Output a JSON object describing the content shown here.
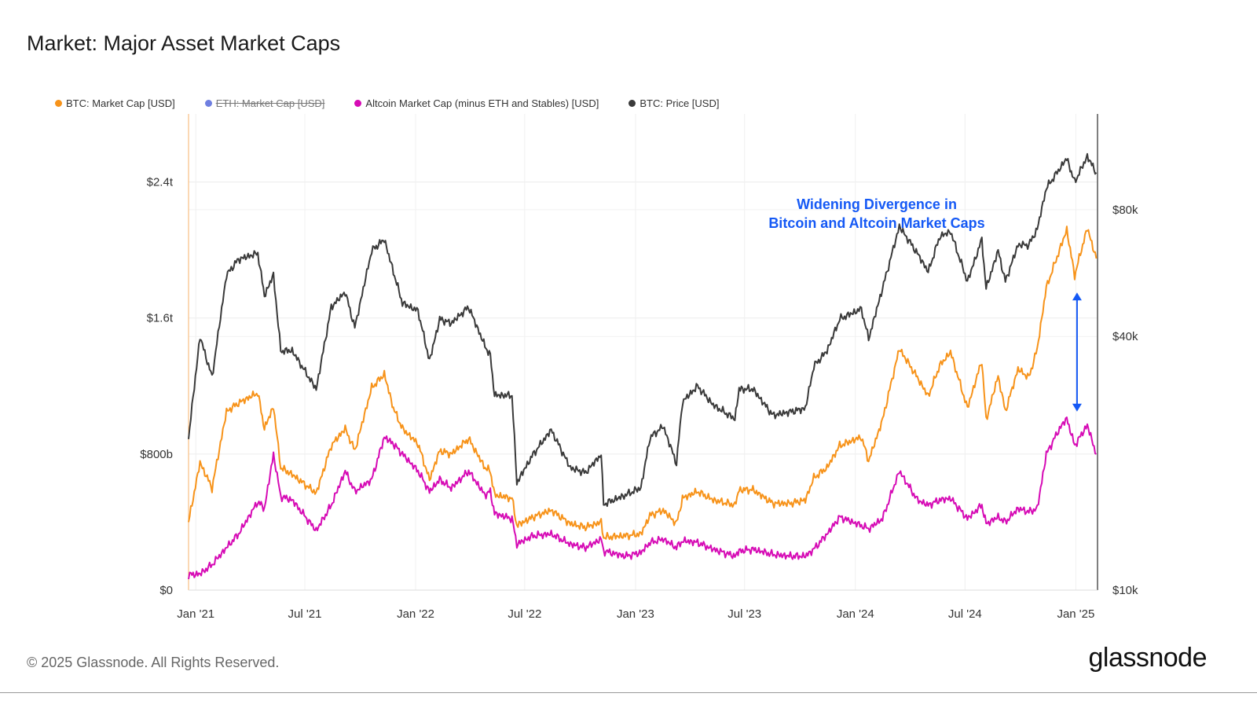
{
  "header": {
    "title": "Market: Major Asset Market Caps"
  },
  "footer": {
    "copyright": "© 2025 Glassnode. All Rights Reserved.",
    "brand": "glassnode"
  },
  "legend": [
    {
      "label": "BTC: Market Cap [USD]",
      "color": "#f7931a",
      "active": true
    },
    {
      "label": "ETH: Market Cap [USD]",
      "color": "#6f7fe0",
      "active": false
    },
    {
      "label": "Altcoin Market Cap (minus ETH and Stables) [USD]",
      "color": "#d60bb5",
      "active": true
    },
    {
      "label": "BTC: Price [USD]",
      "color": "#3a3a3a",
      "active": true
    }
  ],
  "chart_data": {
    "type": "line",
    "title": "Market: Major Asset Market Caps",
    "x_tick_labels": [
      "Jan '21",
      "Jul '21",
      "Jan '22",
      "Jul '22",
      "Jan '23",
      "Jul '23",
      "Jan '24",
      "Jul '24",
      "Jan '25"
    ],
    "x_tick_dates": [
      "2021-01-01",
      "2021-07-01",
      "2022-01-01",
      "2022-07-01",
      "2023-01-01",
      "2023-07-01",
      "2024-01-01",
      "2024-07-01",
      "2025-01-01"
    ],
    "x_range": [
      "2020-12-20",
      "2025-02-06"
    ],
    "y_left": {
      "tick_labels": [
        "$0",
        "$800b",
        "$1.6t",
        "$2.4t"
      ],
      "tick_values": [
        0,
        800,
        1600,
        2400
      ],
      "unit": "billion USD",
      "range": [
        0,
        2800
      ]
    },
    "y_right": {
      "tick_labels": [
        "$10k",
        "$40k",
        "$80k"
      ],
      "tick_values": [
        10000,
        40000,
        80000
      ],
      "scale": "log",
      "range": [
        10000,
        135000
      ]
    },
    "annotation": {
      "lines": [
        "Widening Divergence in",
        "Bitcoin and Altcoin Market Caps"
      ],
      "color": "#1559f5",
      "from_date": "2025-01-03",
      "value_top": 1750,
      "value_bottom": 1050
    },
    "series": [
      {
        "name": "BTC: Market Cap [USD]",
        "axis": "left",
        "color": "#f7931a",
        "points": [
          [
            "2020-12-20",
            400
          ],
          [
            "2021-01-08",
            750
          ],
          [
            "2021-01-28",
            600
          ],
          [
            "2021-02-21",
            1050
          ],
          [
            "2021-03-13",
            1100
          ],
          [
            "2021-04-14",
            1160
          ],
          [
            "2021-04-25",
            950
          ],
          [
            "2021-05-10",
            1080
          ],
          [
            "2021-05-22",
            720
          ],
          [
            "2021-06-10",
            680
          ],
          [
            "2021-07-20",
            570
          ],
          [
            "2021-08-14",
            850
          ],
          [
            "2021-09-06",
            950
          ],
          [
            "2021-09-22",
            820
          ],
          [
            "2021-10-20",
            1190
          ],
          [
            "2021-11-10",
            1270
          ],
          [
            "2021-11-25",
            1070
          ],
          [
            "2021-12-10",
            950
          ],
          [
            "2022-01-05",
            860
          ],
          [
            "2022-01-24",
            650
          ],
          [
            "2022-02-10",
            820
          ],
          [
            "2022-03-01",
            800
          ],
          [
            "2022-03-30",
            890
          ],
          [
            "2022-04-26",
            720
          ],
          [
            "2022-05-05",
            700
          ],
          [
            "2022-05-12",
            560
          ],
          [
            "2022-06-10",
            540
          ],
          [
            "2022-06-18",
            380
          ],
          [
            "2022-07-15",
            430
          ],
          [
            "2022-08-14",
            470
          ],
          [
            "2022-09-15",
            390
          ],
          [
            "2022-10-10",
            370
          ],
          [
            "2022-11-05",
            400
          ],
          [
            "2022-11-09",
            310
          ],
          [
            "2022-12-15",
            320
          ],
          [
            "2023-01-10",
            330
          ],
          [
            "2023-01-25",
            440
          ],
          [
            "2023-02-16",
            470
          ],
          [
            "2023-03-10",
            390
          ],
          [
            "2023-03-20",
            540
          ],
          [
            "2023-04-14",
            580
          ],
          [
            "2023-05-10",
            530
          ],
          [
            "2023-06-15",
            500
          ],
          [
            "2023-06-22",
            590
          ],
          [
            "2023-07-15",
            590
          ],
          [
            "2023-08-17",
            510
          ],
          [
            "2023-09-15",
            510
          ],
          [
            "2023-10-10",
            530
          ],
          [
            "2023-10-24",
            660
          ],
          [
            "2023-11-15",
            720
          ],
          [
            "2023-12-06",
            850
          ],
          [
            "2024-01-11",
            900
          ],
          [
            "2024-01-23",
            760
          ],
          [
            "2024-02-15",
            1000
          ],
          [
            "2024-03-14",
            1420
          ],
          [
            "2024-04-13",
            1250
          ],
          [
            "2024-05-01",
            1140
          ],
          [
            "2024-05-20",
            1320
          ],
          [
            "2024-06-07",
            1400
          ],
          [
            "2024-07-05",
            1070
          ],
          [
            "2024-07-29",
            1350
          ],
          [
            "2024-08-05",
            1000
          ],
          [
            "2024-08-25",
            1260
          ],
          [
            "2024-09-06",
            1050
          ],
          [
            "2024-09-27",
            1300
          ],
          [
            "2024-10-15",
            1250
          ],
          [
            "2024-10-29",
            1420
          ],
          [
            "2024-11-13",
            1780
          ],
          [
            "2024-12-05",
            2000
          ],
          [
            "2024-12-17",
            2120
          ],
          [
            "2024-12-30",
            1850
          ],
          [
            "2025-01-20",
            2130
          ],
          [
            "2025-02-04",
            1950
          ]
        ]
      },
      {
        "name": "Altcoin Market Cap (minus ETH and Stables) [USD]",
        "axis": "left",
        "color": "#d60bb5",
        "points": [
          [
            "2020-12-20",
            90
          ],
          [
            "2021-01-08",
            95
          ],
          [
            "2021-01-28",
            150
          ],
          [
            "2021-02-21",
            250
          ],
          [
            "2021-03-13",
            330
          ],
          [
            "2021-04-14",
            520
          ],
          [
            "2021-04-25",
            480
          ],
          [
            "2021-05-10",
            800
          ],
          [
            "2021-05-22",
            550
          ],
          [
            "2021-06-10",
            530
          ],
          [
            "2021-07-20",
            350
          ],
          [
            "2021-08-14",
            500
          ],
          [
            "2021-09-06",
            700
          ],
          [
            "2021-09-22",
            580
          ],
          [
            "2021-10-20",
            650
          ],
          [
            "2021-11-10",
            900
          ],
          [
            "2021-11-25",
            860
          ],
          [
            "2021-12-10",
            800
          ],
          [
            "2022-01-05",
            700
          ],
          [
            "2022-01-24",
            580
          ],
          [
            "2022-02-10",
            650
          ],
          [
            "2022-03-01",
            600
          ],
          [
            "2022-03-30",
            700
          ],
          [
            "2022-04-26",
            560
          ],
          [
            "2022-05-05",
            580
          ],
          [
            "2022-05-12",
            450
          ],
          [
            "2022-06-10",
            420
          ],
          [
            "2022-06-18",
            270
          ],
          [
            "2022-07-15",
            320
          ],
          [
            "2022-08-14",
            330
          ],
          [
            "2022-09-15",
            270
          ],
          [
            "2022-10-10",
            250
          ],
          [
            "2022-11-05",
            300
          ],
          [
            "2022-11-09",
            230
          ],
          [
            "2022-12-15",
            200
          ],
          [
            "2023-01-10",
            220
          ],
          [
            "2023-01-25",
            280
          ],
          [
            "2023-02-16",
            300
          ],
          [
            "2023-03-10",
            250
          ],
          [
            "2023-03-20",
            290
          ],
          [
            "2023-04-14",
            280
          ],
          [
            "2023-05-10",
            240
          ],
          [
            "2023-06-15",
            200
          ],
          [
            "2023-06-22",
            230
          ],
          [
            "2023-07-15",
            240
          ],
          [
            "2023-08-17",
            210
          ],
          [
            "2023-09-15",
            200
          ],
          [
            "2023-10-10",
            200
          ],
          [
            "2023-10-24",
            240
          ],
          [
            "2023-11-15",
            330
          ],
          [
            "2023-12-06",
            430
          ],
          [
            "2024-01-11",
            380
          ],
          [
            "2024-01-23",
            360
          ],
          [
            "2024-02-15",
            420
          ],
          [
            "2024-03-14",
            700
          ],
          [
            "2024-04-13",
            530
          ],
          [
            "2024-05-01",
            500
          ],
          [
            "2024-05-20",
            530
          ],
          [
            "2024-06-07",
            540
          ],
          [
            "2024-07-05",
            420
          ],
          [
            "2024-07-29",
            500
          ],
          [
            "2024-08-05",
            390
          ],
          [
            "2024-08-25",
            430
          ],
          [
            "2024-09-06",
            400
          ],
          [
            "2024-09-27",
            480
          ],
          [
            "2024-10-15",
            460
          ],
          [
            "2024-10-29",
            480
          ],
          [
            "2024-11-13",
            800
          ],
          [
            "2024-12-05",
            950
          ],
          [
            "2024-12-17",
            1010
          ],
          [
            "2024-12-30",
            850
          ],
          [
            "2025-01-20",
            970
          ],
          [
            "2025-02-04",
            800
          ]
        ]
      },
      {
        "name": "BTC: Price [USD]",
        "axis": "right",
        "color": "#3a3a3a",
        "points": [
          [
            "2020-12-20",
            23000
          ],
          [
            "2021-01-08",
            40000
          ],
          [
            "2021-01-28",
            32000
          ],
          [
            "2021-02-21",
            56000
          ],
          [
            "2021-03-13",
            61000
          ],
          [
            "2021-04-14",
            63000
          ],
          [
            "2021-04-25",
            50000
          ],
          [
            "2021-05-10",
            56000
          ],
          [
            "2021-05-22",
            37000
          ],
          [
            "2021-06-10",
            37000
          ],
          [
            "2021-07-20",
            30000
          ],
          [
            "2021-08-14",
            47000
          ],
          [
            "2021-09-06",
            51000
          ],
          [
            "2021-09-22",
            42000
          ],
          [
            "2021-10-20",
            64000
          ],
          [
            "2021-11-10",
            68000
          ],
          [
            "2021-11-25",
            57000
          ],
          [
            "2021-12-10",
            48000
          ],
          [
            "2022-01-05",
            46000
          ],
          [
            "2022-01-24",
            35000
          ],
          [
            "2022-02-10",
            44000
          ],
          [
            "2022-03-01",
            43000
          ],
          [
            "2022-03-30",
            47000
          ],
          [
            "2022-04-26",
            38000
          ],
          [
            "2022-05-05",
            36000
          ],
          [
            "2022-05-12",
            29000
          ],
          [
            "2022-06-10",
            29000
          ],
          [
            "2022-06-18",
            18000
          ],
          [
            "2022-07-15",
            21000
          ],
          [
            "2022-08-14",
            24000
          ],
          [
            "2022-09-15",
            19500
          ],
          [
            "2022-10-10",
            19000
          ],
          [
            "2022-11-05",
            21000
          ],
          [
            "2022-11-09",
            16000
          ],
          [
            "2022-12-15",
            16800
          ],
          [
            "2023-01-10",
            17500
          ],
          [
            "2023-01-25",
            23000
          ],
          [
            "2023-02-16",
            24500
          ],
          [
            "2023-03-10",
            20000
          ],
          [
            "2023-03-20",
            28000
          ],
          [
            "2023-04-14",
            30500
          ],
          [
            "2023-05-10",
            27500
          ],
          [
            "2023-06-15",
            25500
          ],
          [
            "2023-06-22",
            30000
          ],
          [
            "2023-07-15",
            30000
          ],
          [
            "2023-08-17",
            26000
          ],
          [
            "2023-09-15",
            26500
          ],
          [
            "2023-10-10",
            27000
          ],
          [
            "2023-10-24",
            34000
          ],
          [
            "2023-11-15",
            37000
          ],
          [
            "2023-12-06",
            44000
          ],
          [
            "2024-01-11",
            46500
          ],
          [
            "2024-01-23",
            39500
          ],
          [
            "2024-02-15",
            52000
          ],
          [
            "2024-03-14",
            73000
          ],
          [
            "2024-04-13",
            63000
          ],
          [
            "2024-05-01",
            57000
          ],
          [
            "2024-05-20",
            69000
          ],
          [
            "2024-06-07",
            71000
          ],
          [
            "2024-07-05",
            54000
          ],
          [
            "2024-07-29",
            68000
          ],
          [
            "2024-08-05",
            52000
          ],
          [
            "2024-08-25",
            64000
          ],
          [
            "2024-09-06",
            54000
          ],
          [
            "2024-09-27",
            66000
          ],
          [
            "2024-10-15",
            66000
          ],
          [
            "2024-10-29",
            72000
          ],
          [
            "2024-11-13",
            90000
          ],
          [
            "2024-12-05",
            100000
          ],
          [
            "2024-12-17",
            106000
          ],
          [
            "2024-12-30",
            93000
          ],
          [
            "2025-01-20",
            107000
          ],
          [
            "2025-02-04",
            98000
          ]
        ]
      }
    ]
  }
}
